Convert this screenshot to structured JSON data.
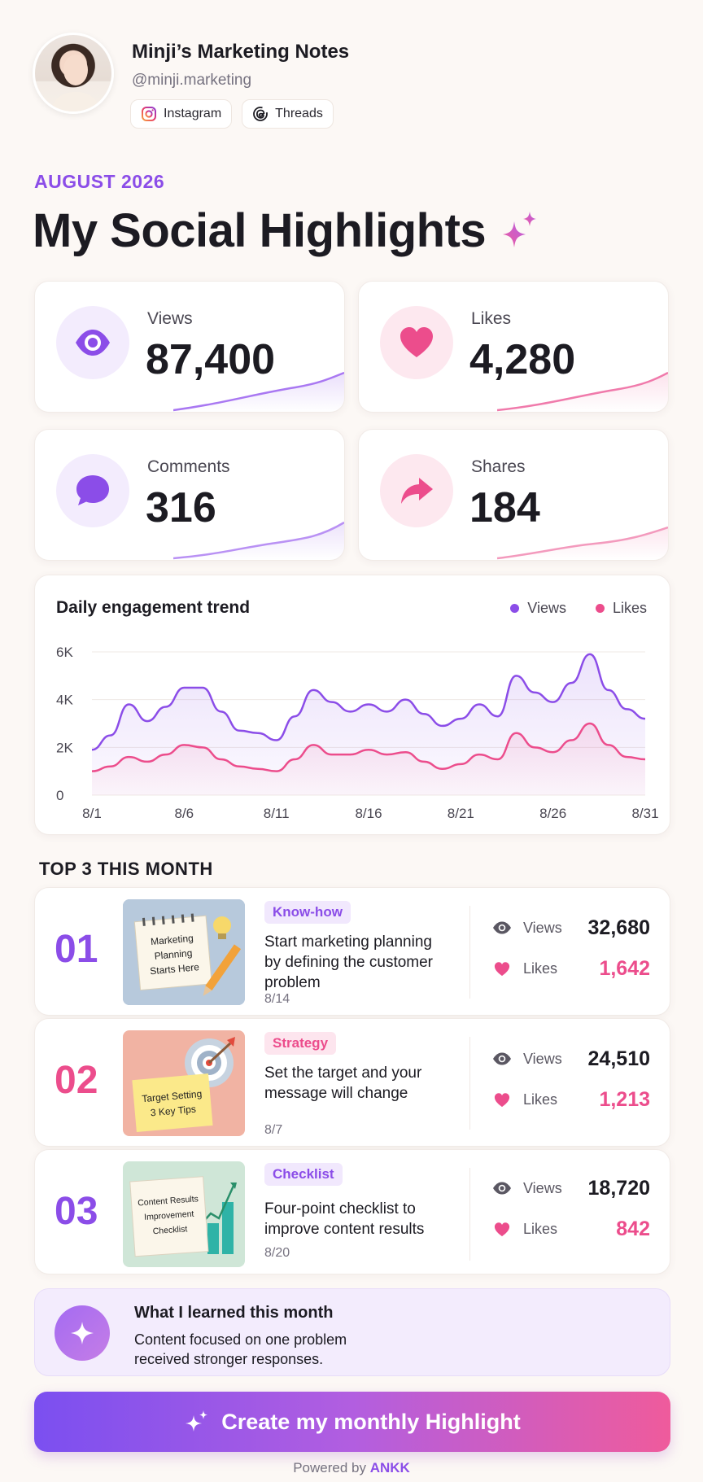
{
  "profile": {
    "name": "Minji’s Marketing Notes",
    "handle": "@minji.marketing",
    "platforms": [
      "Instagram",
      "Threads"
    ]
  },
  "header": {
    "month": "AUGUST 2026",
    "title": "My Social Highlights"
  },
  "stats": [
    {
      "label": "Views",
      "value": "87,400",
      "icon": "eye-icon",
      "color": "#8b4de8"
    },
    {
      "label": "Likes",
      "value": "4,280",
      "icon": "heart-icon",
      "color": "#ec4d8c"
    },
    {
      "label": "Comments",
      "value": "316",
      "icon": "chat-bubble-icon",
      "color": "#8b4de8"
    },
    {
      "label": "Shares",
      "value": "184",
      "icon": "share-arrow-icon",
      "color": "#ec4d8c"
    }
  ],
  "chart_data": {
    "type": "area",
    "title": "Daily engagement trend",
    "x": [
      "8/1",
      "8/2",
      "8/3",
      "8/4",
      "8/5",
      "8/6",
      "8/7",
      "8/8",
      "8/9",
      "8/10",
      "8/11",
      "8/12",
      "8/13",
      "8/14",
      "8/15",
      "8/16",
      "8/17",
      "8/18",
      "8/19",
      "8/20",
      "8/21",
      "8/22",
      "8/23",
      "8/24",
      "8/25",
      "8/26",
      "8/27",
      "8/28",
      "8/29",
      "8/30",
      "8/31"
    ],
    "xticks": [
      "8/1",
      "8/6",
      "8/11",
      "8/16",
      "8/21",
      "8/26",
      "8/31"
    ],
    "yticks": [
      "0",
      "2K",
      "4K",
      "6K"
    ],
    "ylim": [
      0,
      6000
    ],
    "legend_position": "top-right",
    "grid": true,
    "series": [
      {
        "name": "Views",
        "color": "#8b4de8",
        "values": [
          1900,
          2500,
          3800,
          3100,
          3700,
          4500,
          4500,
          3500,
          2700,
          2600,
          2300,
          3300,
          4400,
          3900,
          3500,
          3800,
          3500,
          4000,
          3400,
          2900,
          3200,
          3800,
          3300,
          5000,
          4300,
          3900,
          4700,
          5900,
          4400,
          3600,
          3200
        ]
      },
      {
        "name": "Likes",
        "color": "#ec4d8c",
        "values": [
          1000,
          1200,
          1600,
          1400,
          1700,
          2100,
          2000,
          1500,
          1200,
          1100,
          1000,
          1500,
          2100,
          1700,
          1700,
          1900,
          1700,
          1800,
          1400,
          1100,
          1300,
          1700,
          1500,
          2600,
          2000,
          1800,
          2300,
          3000,
          2100,
          1600,
          1500
        ]
      }
    ]
  },
  "top": {
    "heading": "TOP 3 THIS MONTH",
    "views_label": "Views",
    "likes_label": "Likes",
    "items": [
      {
        "rank": "01",
        "tag": "Know-how",
        "title": "Start marketing planning by defining the customer problem",
        "date": "8/14",
        "views": "32,680",
        "likes": "1,642",
        "thumb": [
          "Marketing",
          "Planning",
          "Starts Here"
        ]
      },
      {
        "rank": "02",
        "tag": "Strategy",
        "title": "Set the target and your message will change",
        "date": "8/7",
        "views": "24,510",
        "likes": "1,213",
        "thumb": [
          "Target Setting",
          "3 Key Tips"
        ]
      },
      {
        "rank": "03",
        "tag": "Checklist",
        "title": "Four-point checklist to improve content results",
        "date": "8/20",
        "views": "18,720",
        "likes": "842",
        "thumb": [
          "Content Results",
          "Improvement",
          "Checklist"
        ]
      }
    ]
  },
  "learned": {
    "title": "What I learned this month",
    "body": "Content focused on one problem received stronger responses."
  },
  "cta": {
    "label": "Create my monthly Highlight"
  },
  "footer": {
    "prefix": "Powered by",
    "brand": "ANKK"
  }
}
